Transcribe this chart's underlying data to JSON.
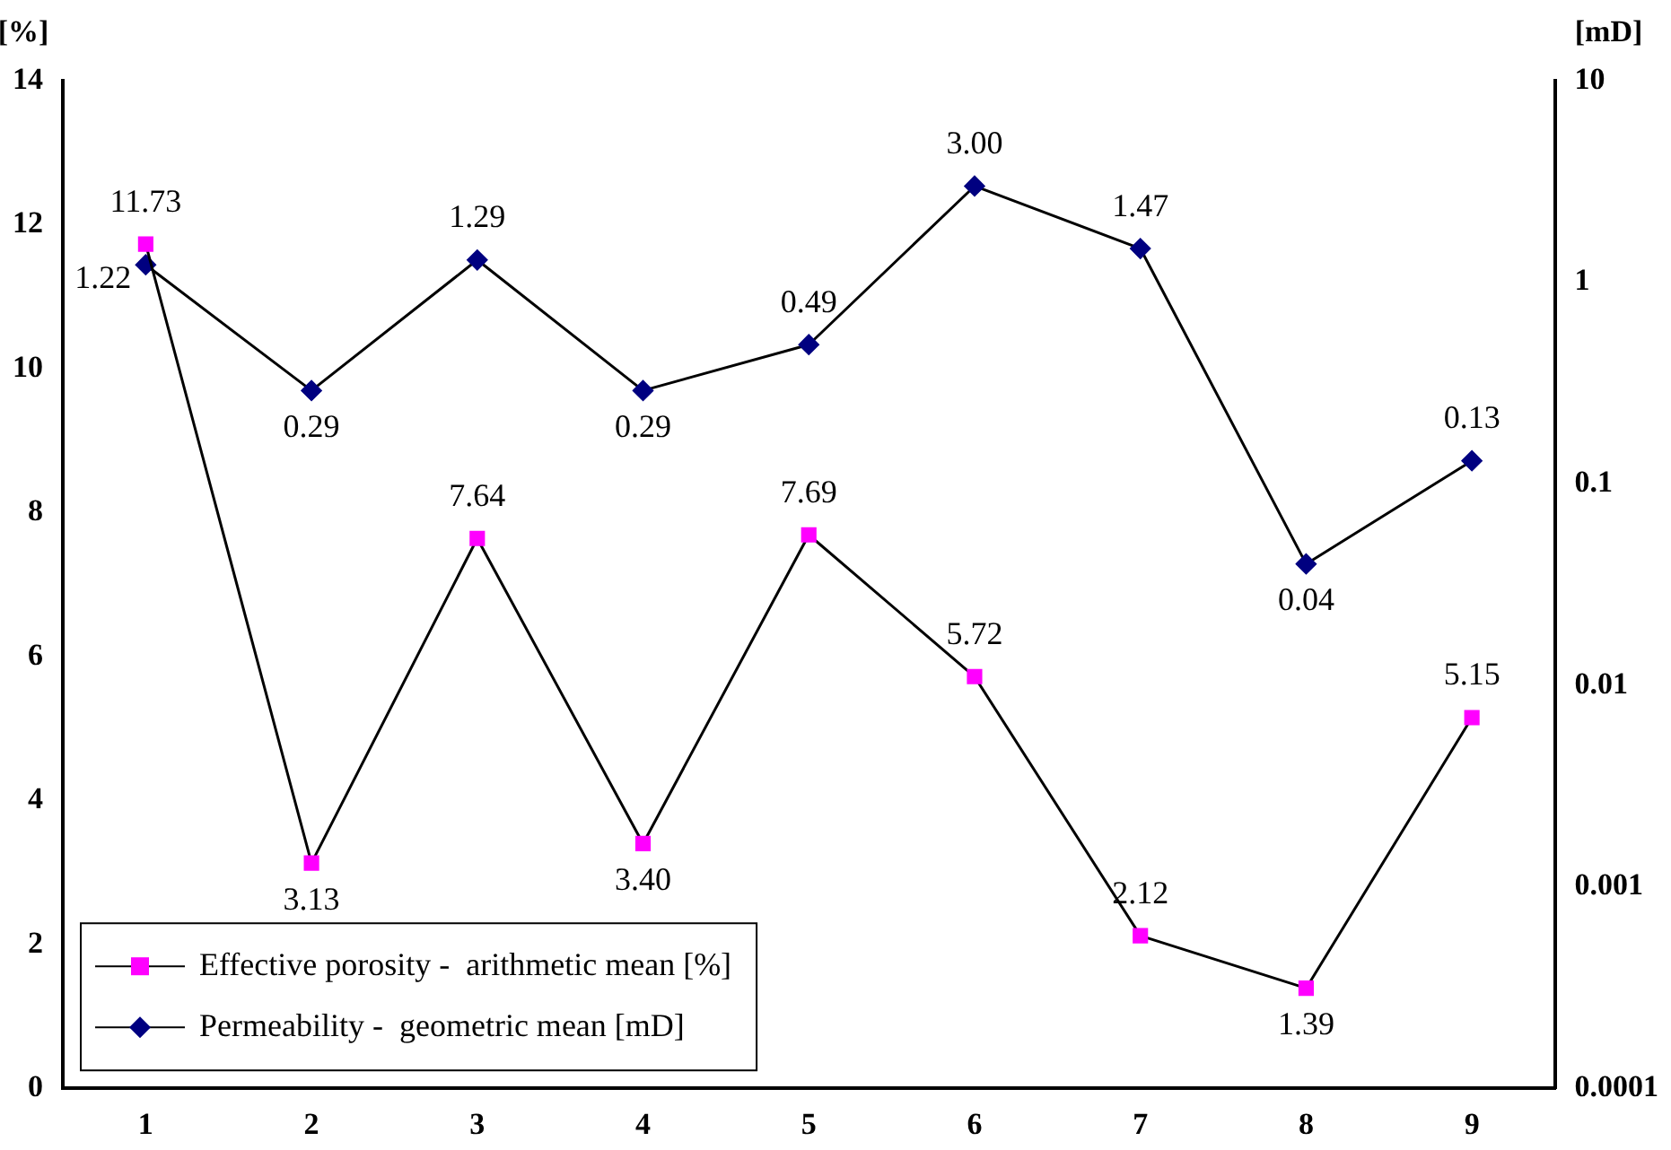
{
  "chart_data": {
    "type": "line",
    "ylabel": "[%]",
    "y2label": "[mD]",
    "categories": [
      "1",
      "2",
      "3",
      "4",
      "5",
      "6",
      "7",
      "8",
      "9"
    ],
    "series": [
      {
        "name": "Effective porosity -  arithmetic mean [%]",
        "color": "#ff00ff",
        "marker": "square",
        "values": [
          11.73,
          3.13,
          7.64,
          3.4,
          7.69,
          5.72,
          2.12,
          1.39,
          5.15
        ],
        "value_labels": [
          "11.73",
          "3.13",
          "7.64",
          "3.40",
          "7.69",
          "5.72",
          "2.12",
          "1.39",
          "5.15"
        ]
      },
      {
        "name": "Permeability -  geometric mean [mD]",
        "color": "#000080",
        "marker": "diamond",
        "axis": "y2",
        "values": [
          1.22,
          0.29,
          1.29,
          0.29,
          0.49,
          3.0,
          1.47,
          0.04,
          0.13
        ],
        "value_labels": [
          "1.22",
          "0.29",
          "1.29",
          "0.29",
          "0.49",
          "3.00",
          "1.47",
          "0.04",
          "0.13"
        ]
      }
    ],
    "ylim": [
      0,
      14
    ],
    "yticks": [
      0,
      2,
      4,
      6,
      8,
      10,
      12,
      14
    ],
    "y2lim": [
      0.0001,
      10
    ],
    "y2ticks": [
      0.0001,
      0.001,
      0.01,
      0.1,
      1,
      10
    ],
    "log": "y2",
    "grid": false,
    "legend": "bottom left"
  }
}
